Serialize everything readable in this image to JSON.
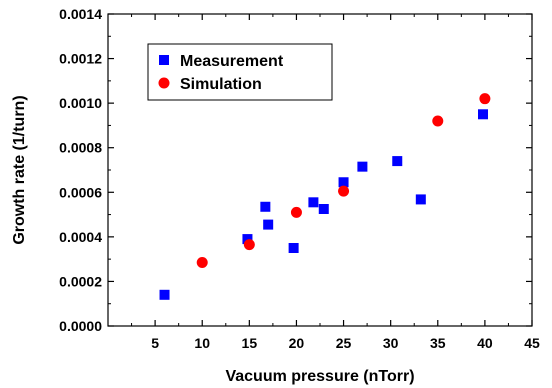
{
  "chart_data": {
    "type": "scatter",
    "title": "",
    "xlabel": "Vacuum pressure (nTorr)",
    "ylabel": "Growth rate (1/turn)",
    "xlim": [
      0,
      45
    ],
    "ylim": [
      0,
      0.0014
    ],
    "x_ticks": [
      "5",
      "10",
      "15",
      "20",
      "25",
      "30",
      "35",
      "40",
      "45"
    ],
    "y_ticks": [
      "0.0000",
      "0.0002",
      "0.0004",
      "0.0006",
      "0.0008",
      "0.0010",
      "0.0012",
      "0.0014"
    ],
    "grid": false,
    "legend_position": "top-left",
    "series": [
      {
        "name": "Measurement",
        "marker": "square",
        "color": "#0000ff",
        "points": [
          {
            "x": 6,
            "y": 0.00014
          },
          {
            "x": 14.8,
            "y": 0.00039
          },
          {
            "x": 16.7,
            "y": 0.000535
          },
          {
            "x": 17,
            "y": 0.000455
          },
          {
            "x": 19.7,
            "y": 0.00035
          },
          {
            "x": 21.8,
            "y": 0.000555
          },
          {
            "x": 22.9,
            "y": 0.000525
          },
          {
            "x": 25,
            "y": 0.000645
          },
          {
            "x": 27,
            "y": 0.000715
          },
          {
            "x": 30.7,
            "y": 0.00074
          },
          {
            "x": 33.2,
            "y": 0.000568
          },
          {
            "x": 39.8,
            "y": 0.00095
          }
        ]
      },
      {
        "name": "Simulation",
        "marker": "circle",
        "color": "#ff0000",
        "points": [
          {
            "x": 10,
            "y": 0.000285
          },
          {
            "x": 15,
            "y": 0.000365
          },
          {
            "x": 20,
            "y": 0.00051
          },
          {
            "x": 25,
            "y": 0.000605
          },
          {
            "x": 35,
            "y": 0.00092
          },
          {
            "x": 40,
            "y": 0.00102
          }
        ]
      }
    ]
  }
}
